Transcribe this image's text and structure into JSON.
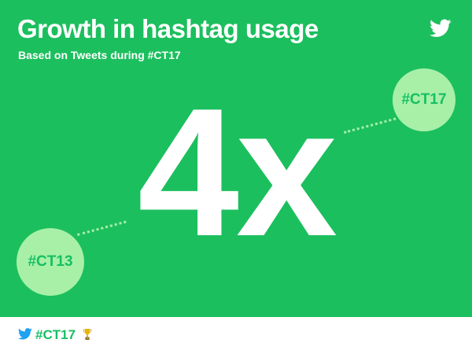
{
  "colors": {
    "background": "#1cbf5e",
    "bubble": "#a8f0a8",
    "bubble_text": "#17bf63",
    "footer_text": "#17bf63"
  },
  "header": {
    "title": "Growth in hashtag usage",
    "subtitle": "Based on Tweets during #CT17",
    "logo_icon": "twitter-bird-icon"
  },
  "stat": {
    "value": "4x"
  },
  "bubbles": {
    "from": "#CT13",
    "to": "#CT17"
  },
  "footer": {
    "hashtag": "#CT17",
    "logo_icon": "twitter-bird-icon",
    "emoji_icon": "trophy-icon"
  }
}
